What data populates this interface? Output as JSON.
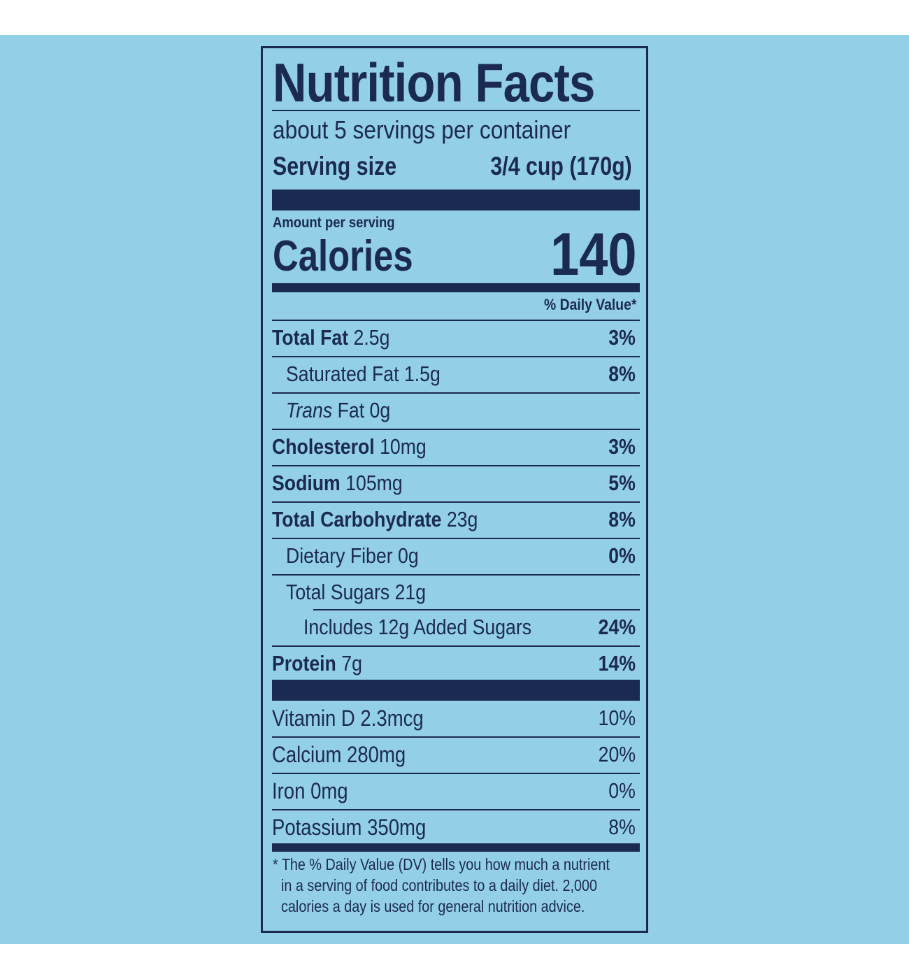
{
  "title": "Nutrition Facts",
  "servings_per_container": "about 5 servings per container",
  "serving_size": {
    "label": "Serving size",
    "value": "3/4 cup (170g)"
  },
  "amount_per_serving": "Amount per serving",
  "calories": {
    "label": "Calories",
    "value": "140"
  },
  "daily_value_header": "% Daily Value*",
  "nutrients": [
    {
      "name": "Total Fat",
      "amount": "2.5g",
      "dv": "3%"
    },
    {
      "name": "Saturated Fat 1.5g",
      "dv": "8%"
    },
    {
      "prefix": "Trans",
      "name": "Fat 0g",
      "dv": ""
    },
    {
      "name": "Cholesterol",
      "amount": "10mg",
      "dv": "3%"
    },
    {
      "name": "Sodium",
      "amount": "105mg",
      "dv": "5%"
    },
    {
      "name": "Total Carbohydrate",
      "amount": "23g",
      "dv": "8%"
    },
    {
      "name": "Dietary Fiber 0g",
      "dv": "0%"
    },
    {
      "name": "Total Sugars 21g",
      "dv": ""
    },
    {
      "name": "Includes 12g Added Sugars",
      "dv": "24%"
    },
    {
      "name": "Protein",
      "amount": "7g",
      "dv": "14%"
    }
  ],
  "vitamins": [
    {
      "name": "Vitamin D 2.3mcg",
      "dv": "10%"
    },
    {
      "name": "Calcium 280mg",
      "dv": "20%"
    },
    {
      "name": "Iron 0mg",
      "dv": "0%"
    },
    {
      "name": "Potassium 350mg",
      "dv": "8%"
    }
  ],
  "footnote": [
    "* The % Daily Value (DV) tells you how much a nutrient",
    "in a serving of food contributes to a daily diet. 2,000",
    "calories a day is used for general nutrition advice."
  ],
  "colors": {
    "background": "#93cfe6",
    "ink": "#1b2a52"
  }
}
